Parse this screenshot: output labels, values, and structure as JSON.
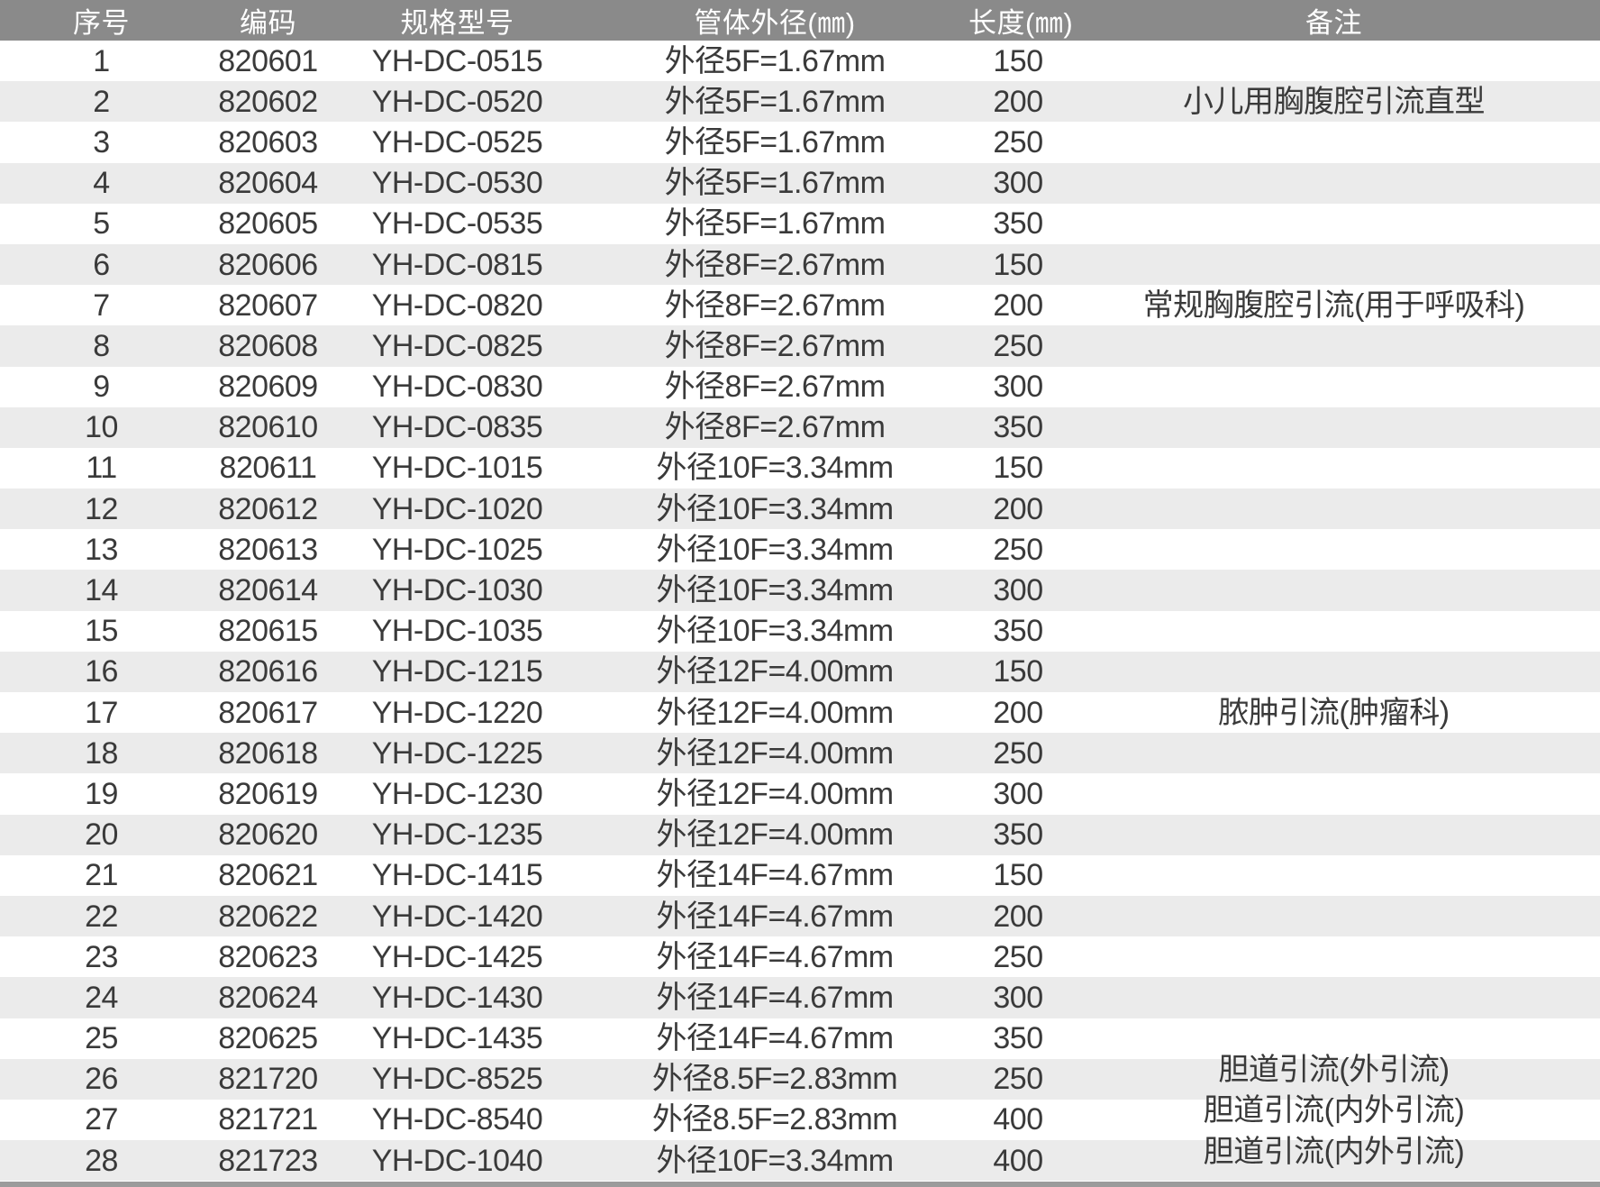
{
  "table": {
    "headers": [
      {
        "key": "no",
        "label": "序号"
      },
      {
        "key": "code",
        "label": "编码"
      },
      {
        "key": "model",
        "label": "规格型号"
      },
      {
        "key": "outer_diameter",
        "label": "管体外径(㎜)"
      },
      {
        "key": "length",
        "label": "长度(㎜)"
      },
      {
        "key": "remark",
        "label": "备注"
      }
    ],
    "rows": [
      {
        "no": "1",
        "code": "820601",
        "model": "YH-DC-0515",
        "outer_diameter": "外径5F=1.67mm",
        "length": "150",
        "remark": ""
      },
      {
        "no": "2",
        "code": "820602",
        "model": "YH-DC-0520",
        "outer_diameter": "外径5F=1.67mm",
        "length": "200",
        "remark": "小儿用胸腹腔引流直型"
      },
      {
        "no": "3",
        "code": "820603",
        "model": "YH-DC-0525",
        "outer_diameter": "外径5F=1.67mm",
        "length": "250",
        "remark": ""
      },
      {
        "no": "4",
        "code": "820604",
        "model": "YH-DC-0530",
        "outer_diameter": "外径5F=1.67mm",
        "length": "300",
        "remark": ""
      },
      {
        "no": "5",
        "code": "820605",
        "model": "YH-DC-0535",
        "outer_diameter": "外径5F=1.67mm",
        "length": "350",
        "remark": ""
      },
      {
        "no": "6",
        "code": "820606",
        "model": "YH-DC-0815",
        "outer_diameter": "外径8F=2.67mm",
        "length": "150",
        "remark": ""
      },
      {
        "no": "7",
        "code": "820607",
        "model": "YH-DC-0820",
        "outer_diameter": "外径8F=2.67mm",
        "length": "200",
        "remark": "常规胸腹腔引流(用于呼吸科)"
      },
      {
        "no": "8",
        "code": "820608",
        "model": "YH-DC-0825",
        "outer_diameter": "外径8F=2.67mm",
        "length": "250",
        "remark": ""
      },
      {
        "no": "9",
        "code": "820609",
        "model": "YH-DC-0830",
        "outer_diameter": "外径8F=2.67mm",
        "length": "300",
        "remark": ""
      },
      {
        "no": "10",
        "code": "820610",
        "model": "YH-DC-0835",
        "outer_diameter": "外径8F=2.67mm",
        "length": "350",
        "remark": ""
      },
      {
        "no": "11",
        "code": "820611",
        "model": "YH-DC-1015",
        "outer_diameter": "外径10F=3.34mm",
        "length": "150",
        "remark": ""
      },
      {
        "no": "12",
        "code": "820612",
        "model": "YH-DC-1020",
        "outer_diameter": "外径10F=3.34mm",
        "length": "200",
        "remark": ""
      },
      {
        "no": "13",
        "code": "820613",
        "model": "YH-DC-1025",
        "outer_diameter": "外径10F=3.34mm",
        "length": "250",
        "remark": ""
      },
      {
        "no": "14",
        "code": "820614",
        "model": "YH-DC-1030",
        "outer_diameter": "外径10F=3.34mm",
        "length": "300",
        "remark": ""
      },
      {
        "no": "15",
        "code": "820615",
        "model": "YH-DC-1035",
        "outer_diameter": "外径10F=3.34mm",
        "length": "350",
        "remark": ""
      },
      {
        "no": "16",
        "code": "820616",
        "model": "YH-DC-1215",
        "outer_diameter": "外径12F=4.00mm",
        "length": "150",
        "remark": ""
      },
      {
        "no": "17",
        "code": "820617",
        "model": "YH-DC-1220",
        "outer_diameter": "外径12F=4.00mm",
        "length": "200",
        "remark": "脓肿引流(肿瘤科)"
      },
      {
        "no": "18",
        "code": "820618",
        "model": "YH-DC-1225",
        "outer_diameter": "外径12F=4.00mm",
        "length": "250",
        "remark": ""
      },
      {
        "no": "19",
        "code": "820619",
        "model": "YH-DC-1230",
        "outer_diameter": "外径12F=4.00mm",
        "length": "300",
        "remark": ""
      },
      {
        "no": "20",
        "code": "820620",
        "model": "YH-DC-1235",
        "outer_diameter": "外径12F=4.00mm",
        "length": "350",
        "remark": ""
      },
      {
        "no": "21",
        "code": "820621",
        "model": "YH-DC-1415",
        "outer_diameter": "外径14F=4.67mm",
        "length": "150",
        "remark": ""
      },
      {
        "no": "22",
        "code": "820622",
        "model": "YH-DC-1420",
        "outer_diameter": "外径14F=4.67mm",
        "length": "200",
        "remark": ""
      },
      {
        "no": "23",
        "code": "820623",
        "model": "YH-DC-1425",
        "outer_diameter": "外径14F=4.67mm",
        "length": "250",
        "remark": ""
      },
      {
        "no": "24",
        "code": "820624",
        "model": "YH-DC-1430",
        "outer_diameter": "外径14F=4.67mm",
        "length": "300",
        "remark": ""
      },
      {
        "no": "25",
        "code": "820625",
        "model": "YH-DC-1435",
        "outer_diameter": "外径14F=4.67mm",
        "length": "350",
        "remark": ""
      },
      {
        "no": "26",
        "code": "821720",
        "model": "YH-DC-8525",
        "outer_diameter": "外径8.5F=2.83mm",
        "length": "250",
        "remark": "胆道引流(外引流)"
      },
      {
        "no": "27",
        "code": "821721",
        "model": "YH-DC-8540",
        "outer_diameter": "外径8.5F=2.83mm",
        "length": "400",
        "remark": "胆道引流(内外引流)"
      },
      {
        "no": "28",
        "code": "821723",
        "model": "YH-DC-1040",
        "outer_diameter": "外径10F=3.34mm",
        "length": "400",
        "remark": "胆道引流(内外引流)"
      }
    ]
  },
  "colors": {
    "header_bg": "#8a8a8a",
    "header_text": "#ffffff",
    "row_alt_bg": "#ebebeb",
    "text": "#3a3a3a",
    "bottom_bar": "#9b9b9b"
  }
}
